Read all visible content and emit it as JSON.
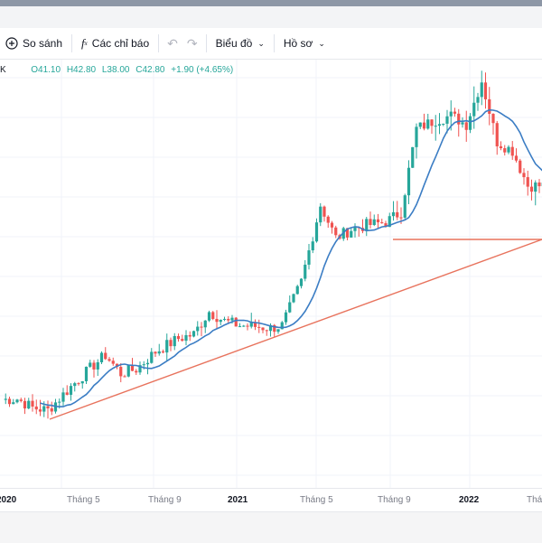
{
  "toolbar": {
    "compare_label": "So sánh",
    "indicators_label": "Các chỉ báo",
    "chart_type_label": "Biểu đồ",
    "profile_label": "Hồ sơ"
  },
  "legend": {
    "symbol_tail": "K",
    "open": "O41.10",
    "high": "H42.80",
    "low": "L38.00",
    "close": "C42.80",
    "change": "+1.90 (+4.65%)"
  },
  "colors": {
    "up": "#26a69a",
    "down": "#ef5350",
    "ma": "#3b7dc4",
    "trendline": "#e8735d"
  },
  "xaxis": {
    "labels": [
      "2020",
      "Tháng 5",
      "Tháng 9",
      "2021",
      "Tháng 5",
      "Tháng 9",
      "2022",
      "Tháng"
    ]
  },
  "chart_data": {
    "type": "candlestick",
    "title": "",
    "x_ticks": [
      "2020",
      "Tháng 5",
      "Tháng 9",
      "2021",
      "Tháng 5",
      "Tháng 9",
      "2022"
    ],
    "last_bar": {
      "open": 41.1,
      "high": 42.8,
      "low": 38.0,
      "close": 42.8,
      "change": 1.9,
      "change_pct": 4.65
    },
    "price_path_approx": [
      {
        "period": "2020 start",
        "close": 9.5
      },
      {
        "period": "2020 Mar",
        "close": 8.3
      },
      {
        "period": "2020 Jun",
        "close": 14.5
      },
      {
        "period": "2020 Sep",
        "close": 15.0
      },
      {
        "period": "2020 Dec",
        "close": 19.5
      },
      {
        "period": "2021 Feb",
        "close": 18.2
      },
      {
        "period": "2021 Apr",
        "close": 17.7
      },
      {
        "period": "2021 Jun",
        "close": 31.5
      },
      {
        "period": "2021 Sep",
        "close": 30.0
      },
      {
        "period": "2021 Nov",
        "close": 40.5
      },
      {
        "period": "2022 Jan",
        "close": 47.0
      },
      {
        "period": "2022 Mar",
        "close": 34.0
      }
    ],
    "moving_average": true,
    "annotations": [
      "rising trendline",
      "horizontal support line"
    ],
    "grid": true
  }
}
